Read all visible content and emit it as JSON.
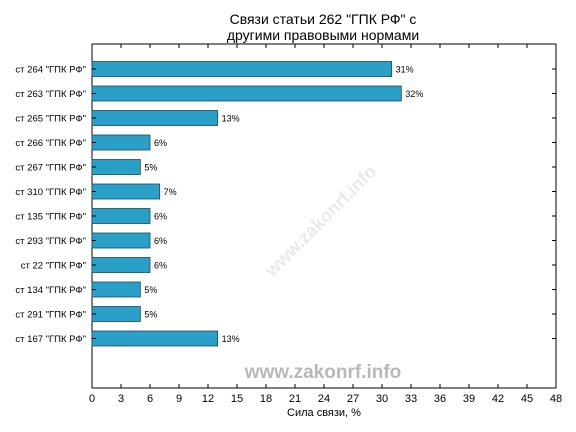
{
  "chart_data": {
    "type": "bar",
    "orientation": "horizontal",
    "title_lines": [
      "Связи статьи 262 \"ГПК РФ\" с",
      "другими правовыми нормами"
    ],
    "xlabel": "Сила связи, %",
    "ylabel": "",
    "xlim": [
      0,
      48
    ],
    "xticks": [
      0,
      3,
      6,
      9,
      12,
      15,
      18,
      21,
      24,
      27,
      30,
      33,
      36,
      39,
      42,
      45,
      48
    ],
    "categories": [
      "ст 264 \"ГПК РФ\"",
      "ст 263 \"ГПК РФ\"",
      "ст 265 \"ГПК РФ\"",
      "ст 266 \"ГПК РФ\"",
      "ст 267 \"ГПК РФ\"",
      "ст 310 \"ГПК РФ\"",
      "ст 135 \"ГПК РФ\"",
      "ст 293 \"ГПК РФ\"",
      "ст 22 \"ГПК РФ\"",
      "ст 134 \"ГПК РФ\"",
      "ст 291 \"ГПК РФ\"",
      "ст 167 \"ГПК РФ\""
    ],
    "values": [
      31,
      32,
      13,
      6,
      5,
      7,
      6,
      6,
      6,
      5,
      5,
      13
    ],
    "value_labels": [
      "31%",
      "32%",
      "13%",
      "6%",
      "5%",
      "7%",
      "6%",
      "6%",
      "6%",
      "5%",
      "5%",
      "13%"
    ],
    "bar_color": "#2aa0c8",
    "bar_edge_color": "#1a4a5a",
    "grid": false,
    "watermark": "www.zakonrf.info"
  }
}
